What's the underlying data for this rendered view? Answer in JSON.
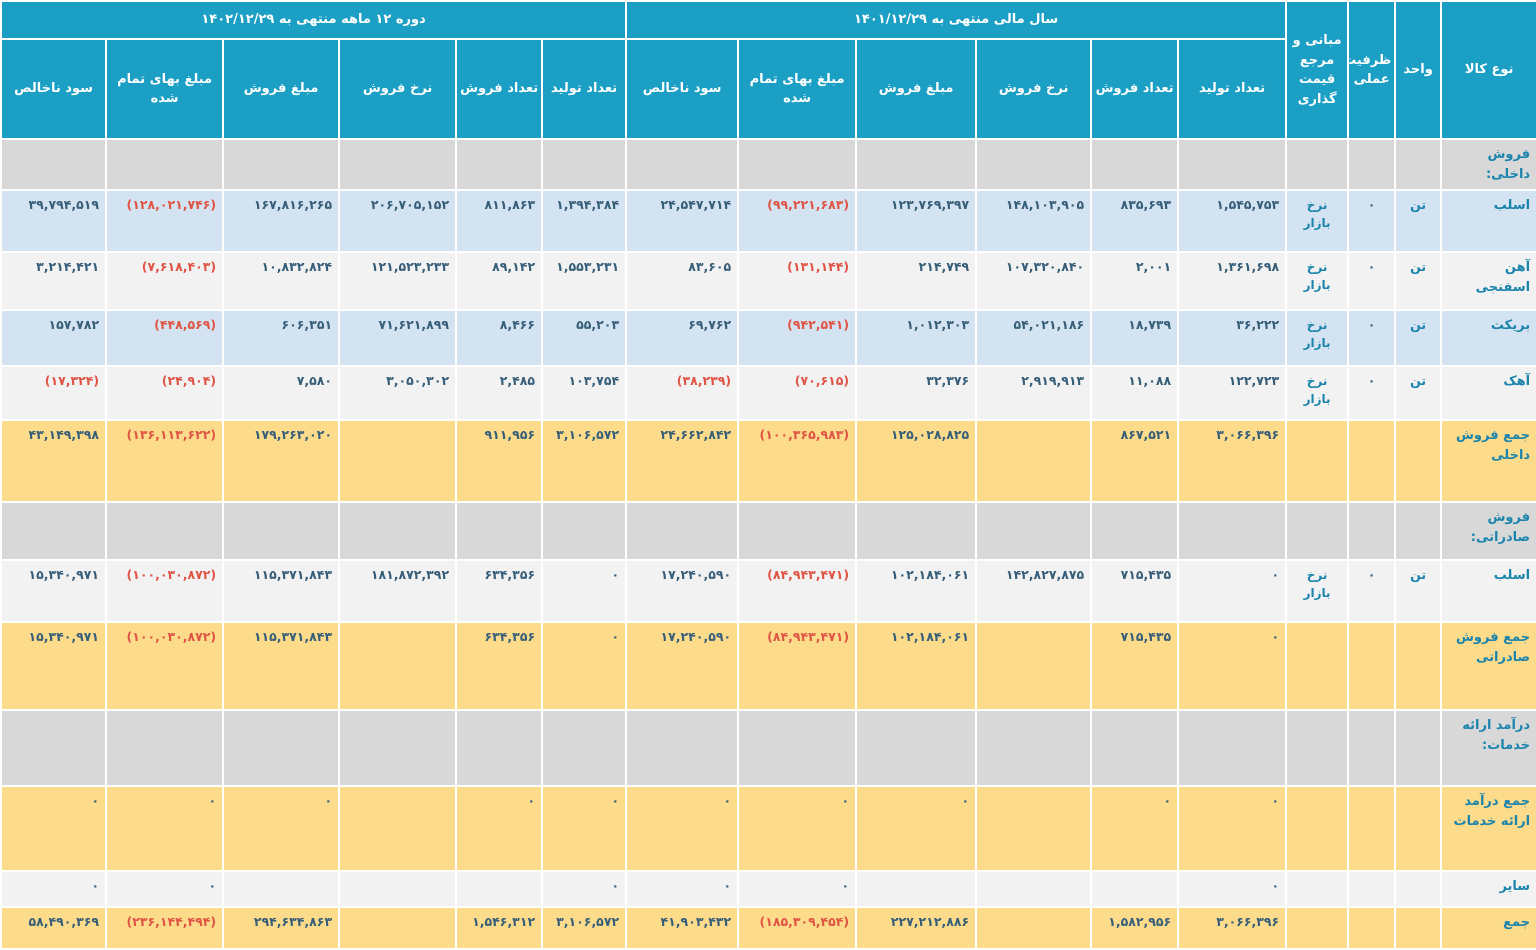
{
  "colors": {
    "header_bg": "#1b9fc4",
    "section_bg": "#d8d8d8",
    "row_blue": "#d3e3f1",
    "row_white": "#f2f2f2",
    "row_yellow": "#fcdb8b",
    "label_text": "#1b84ad",
    "number_text": "#375e79",
    "negative_text": "#e05445"
  },
  "table": {
    "header": {
      "group_period": "دوره ۱۲ ماهه منتهی به ۱۴۰۲/۱۲/۲۹",
      "group_year": "سال مالی منتهی به ۱۴۰۱/۱۲/۲۹",
      "col_kala": "نوع کالا",
      "col_vahed": "واحد",
      "col_zarfiat": "ظرفیت عملی",
      "col_mabani": "مبانی و مرجع قیمت گذاری",
      "sub": [
        "تعداد تولید",
        "تعداد فروش",
        "نرخ فروش",
        "مبلغ فروش",
        "مبلغ بهای تمام شده",
        "سود ناخالص"
      ]
    },
    "rows": [
      {
        "variant": "section",
        "label": "فروش داخلی:"
      },
      {
        "variant": "blue",
        "label": "اسلب",
        "vahed": "تن",
        "zarfiat": "۰",
        "mabani": "نرخ بازار",
        "fy": [
          "۱,۵۴۵,۷۵۳",
          "۸۳۵,۶۹۳",
          "۱۴۸,۱۰۳,۹۰۵",
          "۱۲۳,۷۶۹,۳۹۷",
          "(۹۹,۲۲۱,۶۸۳)",
          "۲۴,۵۴۷,۷۱۴"
        ],
        "p12": [
          "۱,۳۹۴,۳۸۴",
          "۸۱۱,۸۶۳",
          "۲۰۶,۷۰۵,۱۵۲",
          "۱۶۷,۸۱۶,۲۶۵",
          "(۱۲۸,۰۲۱,۷۴۶)",
          "۳۹,۷۹۴,۵۱۹"
        ]
      },
      {
        "variant": "white",
        "label": "آهن اسفنجی",
        "vahed": "تن",
        "zarfiat": "۰",
        "mabani": "نرخ بازار",
        "fy": [
          "۱,۳۶۱,۶۹۸",
          "۲,۰۰۱",
          "۱۰۷,۳۲۰,۸۴۰",
          "۲۱۴,۷۴۹",
          "(۱۳۱,۱۴۴)",
          "۸۳,۶۰۵"
        ],
        "p12": [
          "۱,۵۵۳,۲۳۱",
          "۸۹,۱۴۲",
          "۱۲۱,۵۲۳,۲۳۳",
          "۱۰,۸۳۲,۸۲۴",
          "(۷,۶۱۸,۴۰۳)",
          "۳,۲۱۴,۴۲۱"
        ]
      },
      {
        "variant": "blue",
        "label": "بریکت",
        "vahed": "تن",
        "zarfiat": "۰",
        "mabani": "نرخ بازار",
        "fy": [
          "۳۶,۲۲۲",
          "۱۸,۷۳۹",
          "۵۴,۰۲۱,۱۸۶",
          "۱,۰۱۲,۳۰۳",
          "(۹۴۲,۵۴۱)",
          "۶۹,۷۶۲"
        ],
        "p12": [
          "۵۵,۲۰۳",
          "۸,۴۶۶",
          "۷۱,۶۲۱,۸۹۹",
          "۶۰۶,۳۵۱",
          "(۴۴۸,۵۶۹)",
          "۱۵۷,۷۸۲"
        ]
      },
      {
        "variant": "white",
        "label": "آهک",
        "vahed": "تن",
        "zarfiat": "۰",
        "mabani": "نرخ بازار",
        "fy": [
          "۱۲۲,۷۲۳",
          "۱۱,۰۸۸",
          "۲,۹۱۹,۹۱۳",
          "۳۲,۳۷۶",
          "(۷۰,۶۱۵)",
          "(۳۸,۲۳۹)"
        ],
        "p12": [
          "۱۰۳,۷۵۴",
          "۲,۴۸۵",
          "۳,۰۵۰,۳۰۲",
          "۷,۵۸۰",
          "(۲۴,۹۰۴)",
          "(۱۷,۳۲۴)"
        ]
      },
      {
        "variant": "total",
        "label": "جمع فروش داخلی",
        "vahed": "",
        "zarfiat": "",
        "mabani": "",
        "fy": [
          "۳,۰۶۶,۳۹۶",
          "۸۶۷,۵۲۱",
          "",
          "۱۲۵,۰۲۸,۸۲۵",
          "(۱۰۰,۳۶۵,۹۸۳)",
          "۲۴,۶۶۲,۸۴۲"
        ],
        "p12": [
          "۳,۱۰۶,۵۷۲",
          "۹۱۱,۹۵۶",
          "",
          "۱۷۹,۲۶۳,۰۲۰",
          "(۱۳۶,۱۱۳,۶۲۲)",
          "۴۳,۱۴۹,۳۹۸"
        ]
      },
      {
        "variant": "section",
        "label": "فروش صادراتی:"
      },
      {
        "variant": "white",
        "label": "اسلب",
        "vahed": "تن",
        "zarfiat": "۰",
        "mabani": "نرخ بازار",
        "fy": [
          "۰",
          "۷۱۵,۴۳۵",
          "۱۴۲,۸۲۷,۸۷۵",
          "۱۰۲,۱۸۴,۰۶۱",
          "(۸۴,۹۴۳,۴۷۱)",
          "۱۷,۲۴۰,۵۹۰"
        ],
        "p12": [
          "۰",
          "۶۳۴,۳۵۶",
          "۱۸۱,۸۷۲,۳۹۲",
          "۱۱۵,۳۷۱,۸۴۳",
          "(۱۰۰,۰۳۰,۸۷۲)",
          "۱۵,۳۴۰,۹۷۱"
        ]
      },
      {
        "variant": "total",
        "label": "جمع فروش صادراتی",
        "vahed": "",
        "zarfiat": "",
        "mabani": "",
        "fy": [
          "۰",
          "۷۱۵,۴۳۵",
          "",
          "۱۰۲,۱۸۴,۰۶۱",
          "(۸۴,۹۴۳,۴۷۱)",
          "۱۷,۲۴۰,۵۹۰"
        ],
        "p12": [
          "۰",
          "۶۳۴,۳۵۶",
          "",
          "۱۱۵,۳۷۱,۸۴۳",
          "(۱۰۰,۰۳۰,۸۷۲)",
          "۱۵,۳۴۰,۹۷۱"
        ]
      },
      {
        "variant": "section",
        "label": "درآمد ارائه خدمات:"
      },
      {
        "variant": "total",
        "label": "جمع درآمد ارائه خدمات",
        "vahed": "",
        "zarfiat": "",
        "mabani": "",
        "fy": [
          "۰",
          "۰",
          "",
          "۰",
          "۰",
          "۰"
        ],
        "p12": [
          "۰",
          "۰",
          "",
          "۰",
          "۰",
          "۰"
        ]
      },
      {
        "variant": "white",
        "label": "سایر",
        "vahed": "",
        "zarfiat": "",
        "mabani": "",
        "fy": [
          "۰",
          "",
          "",
          "",
          "۰",
          "۰"
        ],
        "p12": [
          "۰",
          "",
          "",
          "",
          "۰",
          "۰"
        ]
      },
      {
        "variant": "total",
        "label": "جمع",
        "vahed": "",
        "zarfiat": "",
        "mabani": "",
        "fy": [
          "۳,۰۶۶,۳۹۶",
          "۱,۵۸۲,۹۵۶",
          "",
          "۲۲۷,۲۱۲,۸۸۶",
          "(۱۸۵,۳۰۹,۴۵۴)",
          "۴۱,۹۰۳,۴۳۲"
        ],
        "p12": [
          "۳,۱۰۶,۵۷۲",
          "۱,۵۴۶,۳۱۲",
          "",
          "۲۹۴,۶۳۴,۸۶۳",
          "(۲۳۶,۱۴۴,۴۹۴)",
          "۵۸,۴۹۰,۳۶۹"
        ]
      }
    ]
  }
}
